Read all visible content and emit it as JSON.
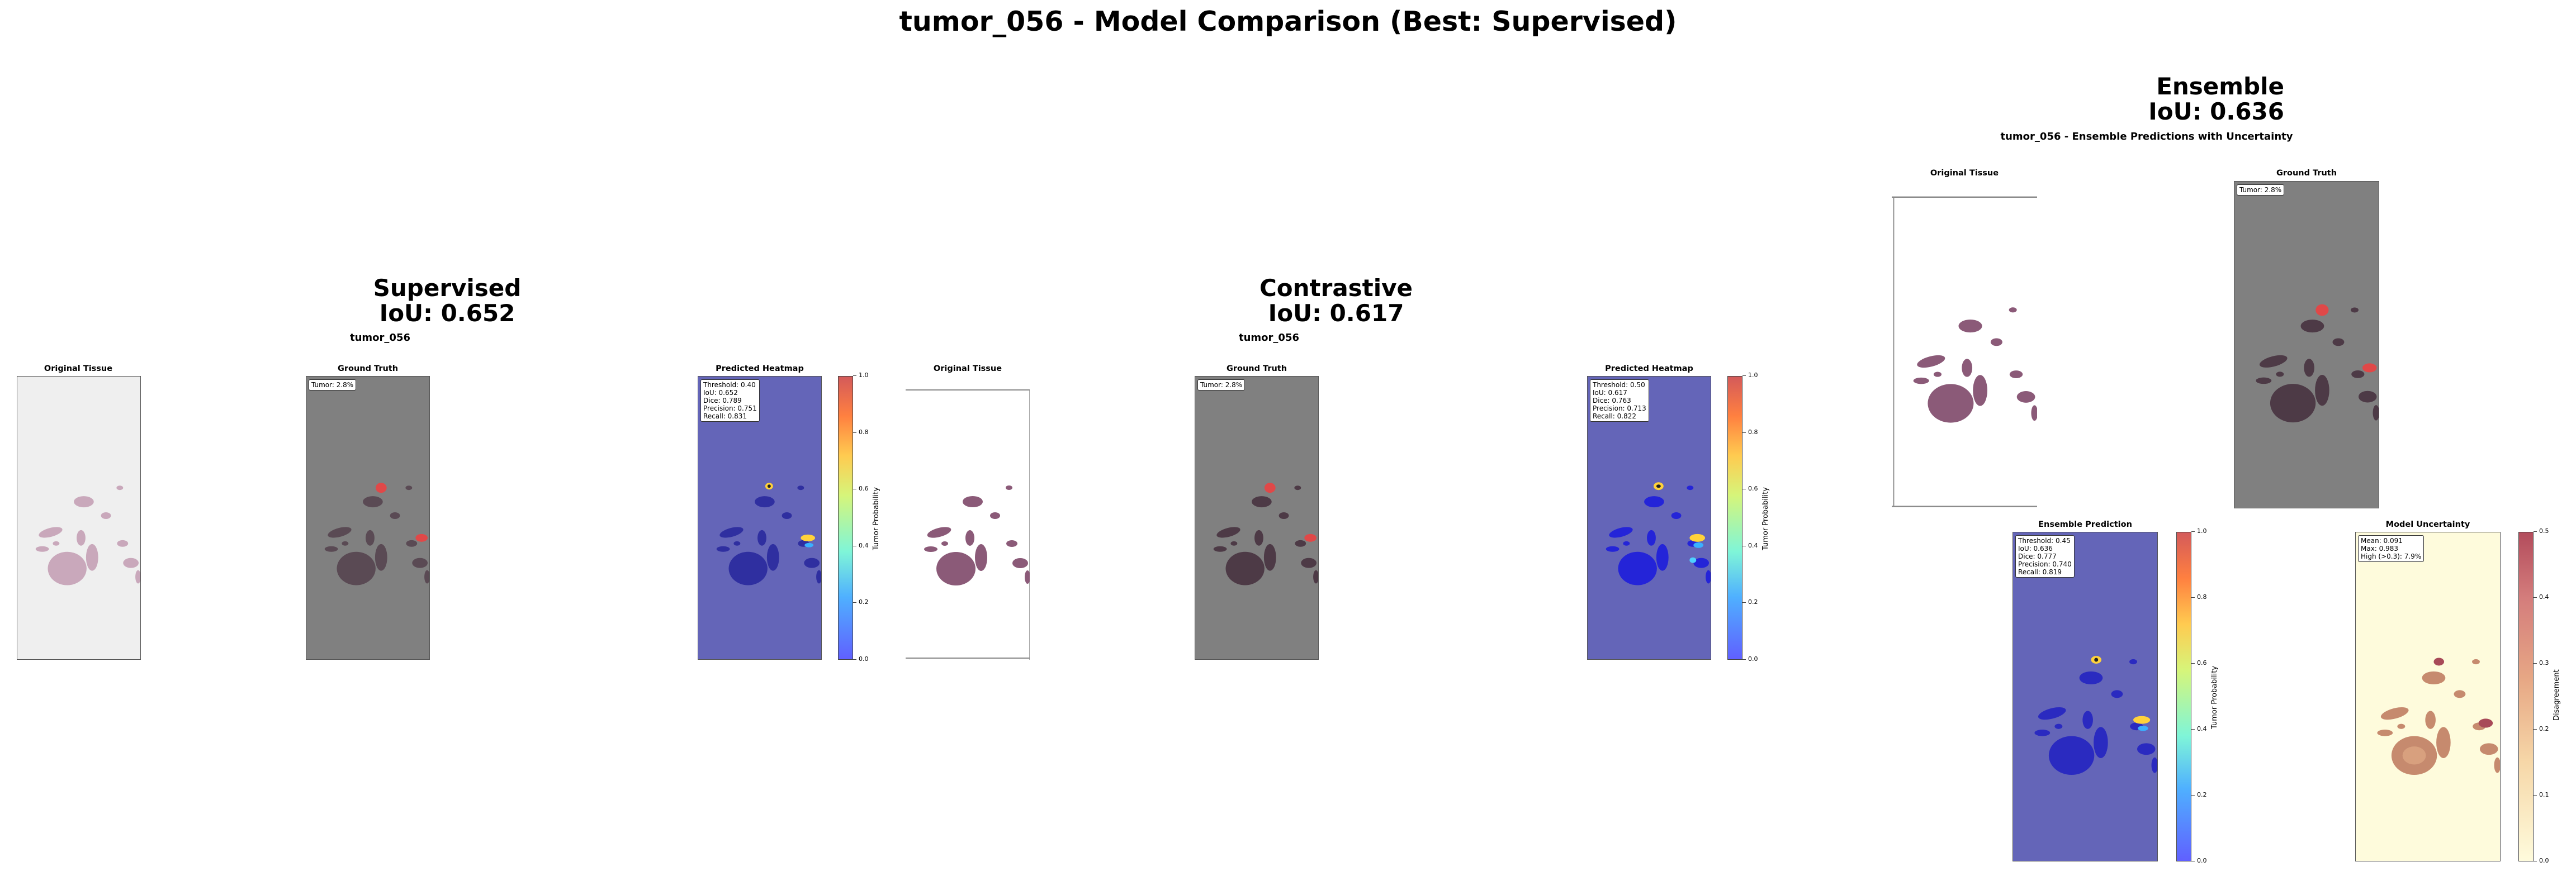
{
  "figure": {
    "title": "tumor_056 - Model Comparison (Best: Supervised)"
  },
  "supervised": {
    "model": "Supervised",
    "iou": "IoU: 0.652",
    "subtitle": "tumor_056",
    "panel_original": "Original Tissue",
    "panel_gt": "Ground Truth",
    "gt_tumor": "Tumor: 2.8%",
    "panel_heatmap": "Predicted Heatmap",
    "heat_stats": [
      "Threshold: 0.40",
      "IoU: 0.652",
      "Dice: 0.789",
      "Precision: 0.751",
      "Recall: 0.831"
    ],
    "cbar_label": "Tumor Probability",
    "cbar_ticks": [
      "1.0",
      "0.8",
      "0.6",
      "0.4",
      "0.2",
      "0.0"
    ]
  },
  "contrastive": {
    "model": "Contrastive",
    "iou": "IoU: 0.617",
    "subtitle": "tumor_056",
    "panel_original": "Original Tissue",
    "panel_gt": "Ground Truth",
    "gt_tumor": "Tumor: 2.8%",
    "panel_heatmap": "Predicted Heatmap",
    "heat_stats": [
      "Threshold: 0.50",
      "IoU: 0.617",
      "Dice: 0.763",
      "Precision: 0.713",
      "Recall: 0.822"
    ],
    "cbar_label": "Tumor Probability",
    "cbar_ticks": [
      "1.0",
      "0.8",
      "0.6",
      "0.4",
      "0.2",
      "0.0"
    ]
  },
  "ensemble": {
    "model": "Ensemble",
    "iou": "IoU: 0.636",
    "subtitle": "tumor_056 - Ensemble Predictions with Uncertainty",
    "panel_original": "Original Tissue",
    "panel_gt": "Ground Truth",
    "gt_tumor": "Tumor: 2.8%",
    "panel_pred": "Ensemble Prediction",
    "pred_stats": [
      "Threshold: 0.45",
      "IoU: 0.636",
      "Dice: 0.777",
      "Precision: 0.740",
      "Recall: 0.819"
    ],
    "pred_cbar_label": "Tumor Probability",
    "pred_cbar_ticks": [
      "1.0",
      "0.8",
      "0.6",
      "0.4",
      "0.2",
      "0.0"
    ],
    "panel_unc": "Model Uncertainty",
    "unc_stats": [
      "Mean: 0.091",
      "Max: 0.983",
      "High (>0.3): 7.9%"
    ],
    "unc_cbar_label": "Disagreement",
    "unc_cbar_ticks": [
      "0.5",
      "0.4",
      "0.3",
      "0.2",
      "0.1",
      "0.0"
    ]
  },
  "colors": {
    "tissue": "#8b5a78",
    "tumor_red": "#e04848",
    "heat_bg": "#6465b8",
    "gt_bg": "#808080"
  }
}
